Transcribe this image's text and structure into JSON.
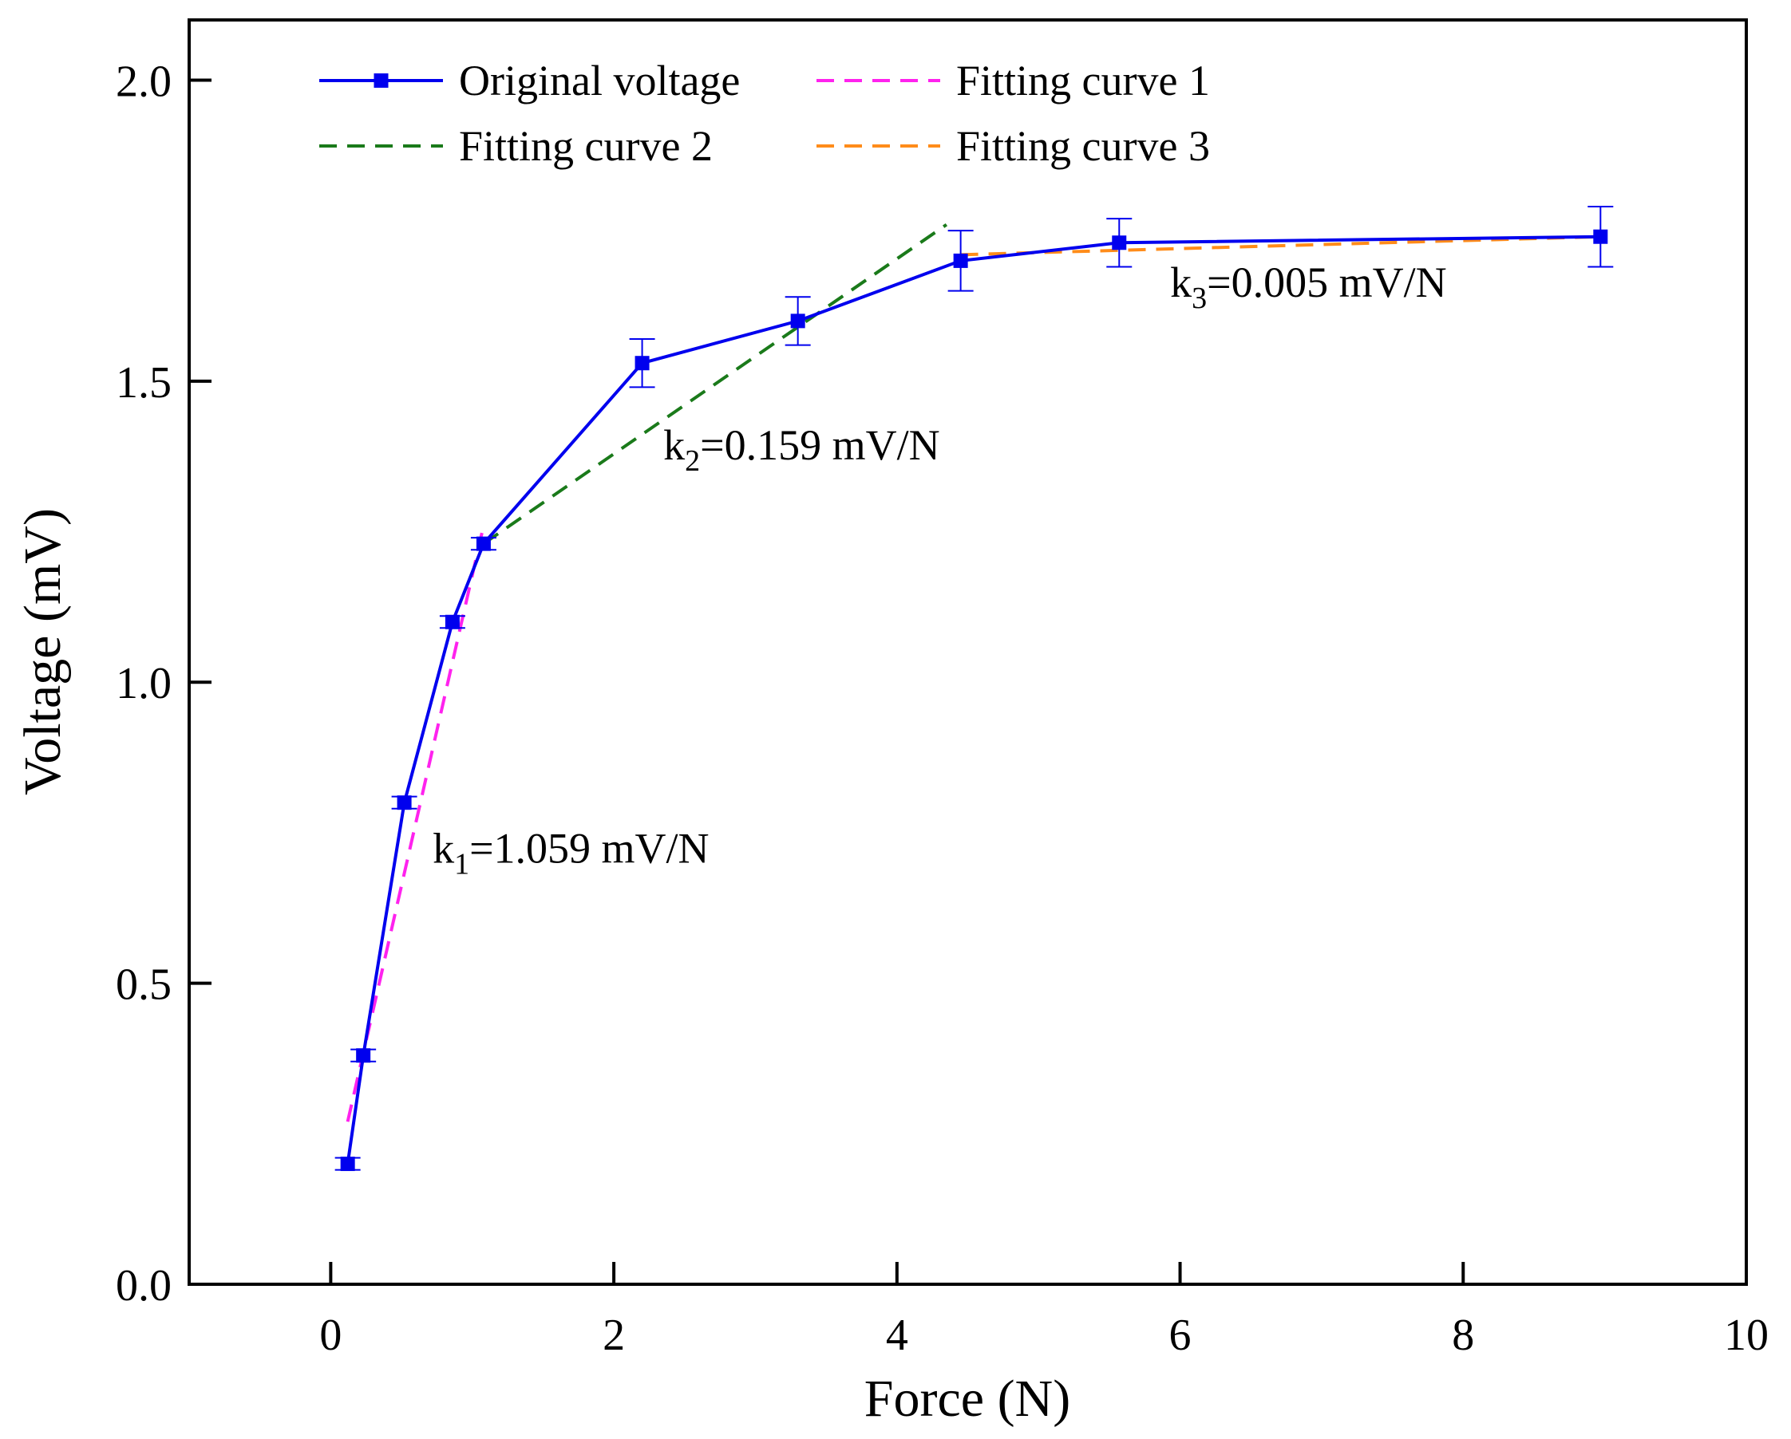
{
  "chart_data": {
    "type": "line",
    "title": "",
    "xlabel": "Force (N)",
    "ylabel": "Voltage (mV)",
    "xlim": [
      -1,
      10
    ],
    "ylim": [
      0,
      2.1
    ],
    "xticks": [
      0,
      2,
      4,
      6,
      8,
      10
    ],
    "xtick_labels": [
      "0",
      "2",
      "4",
      "6",
      "8",
      "10"
    ],
    "yticks": [
      0,
      0.5,
      1.0,
      1.5,
      2.0
    ],
    "ytick_labels": [
      "0.0",
      "0.5",
      "1.0",
      "1.5",
      "2.0"
    ],
    "grid": false,
    "legend_position": "top-left",
    "series": [
      {
        "name": "Original voltage",
        "kind": "line-marker",
        "color": "#0000ee",
        "x": [
          0.12,
          0.23,
          0.52,
          0.86,
          1.08,
          2.2,
          3.3,
          4.45,
          5.57,
          8.97
        ],
        "y": [
          0.2,
          0.38,
          0.8,
          1.1,
          1.23,
          1.53,
          1.6,
          1.7,
          1.73,
          1.74
        ],
        "err": [
          0.01,
          0.01,
          0.01,
          0.01,
          0.01,
          0.04,
          0.04,
          0.05,
          0.04,
          0.05
        ]
      },
      {
        "name": "Fitting curve 1",
        "kind": "dashed",
        "color": "#ff22ee",
        "x": [
          0.12,
          1.08
        ],
        "y": [
          0.27,
          1.26
        ]
      },
      {
        "name": "Fitting curve 2",
        "kind": "dashed",
        "color": "#1a7a1a",
        "x": [
          1.08,
          4.35
        ],
        "y": [
          1.23,
          1.76
        ]
      },
      {
        "name": "Fitting curve 3",
        "kind": "dashed",
        "color": "#ff8c1a",
        "x": [
          4.45,
          8.97
        ],
        "y": [
          1.71,
          1.74
        ]
      }
    ],
    "annotations": [
      {
        "base": "k",
        "sub": "1",
        "rest": "=1.059 mV/N",
        "x": 0.72,
        "y": 0.7
      },
      {
        "base": "k",
        "sub": "2",
        "rest": "=0.159 mV/N",
        "x": 2.35,
        "y": 1.37
      },
      {
        "base": "k",
        "sub": "3",
        "rest": "=0.005 mV/N",
        "x": 5.93,
        "y": 1.64
      }
    ]
  }
}
